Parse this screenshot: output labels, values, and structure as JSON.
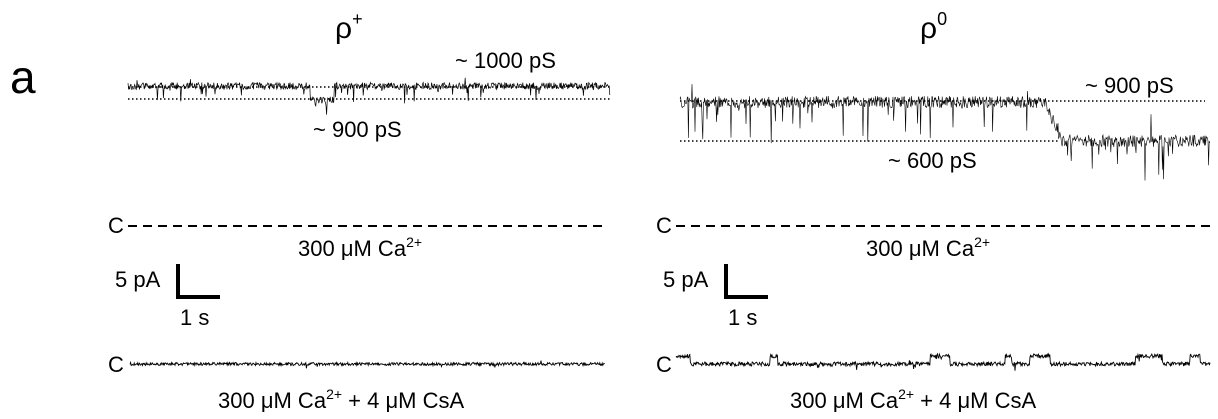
{
  "panel_label": "a",
  "left": {
    "title_base": "ρ",
    "title_sup": "+",
    "upper_conductance": "~ 1000 pS",
    "lower_conductance": "~ 900 pS",
    "closed_label": "C",
    "condition_top_pre": "300 μM Ca",
    "condition_top_sup": "2+",
    "scale_current": "5 pA",
    "scale_time": "1 s",
    "condition_bottom_pre": "300 μM Ca",
    "condition_bottom_sup": "2+",
    "condition_bottom_post": " + 4 μM CsA"
  },
  "right": {
    "title_base": "ρ",
    "title_sup": "0",
    "upper_conductance": "~ 900 pS",
    "lower_conductance": "~ 600 pS",
    "closed_label": "C",
    "condition_top_pre": "300 μM Ca",
    "condition_top_sup": "2+",
    "scale_current": "5 pA",
    "scale_time": "1 s",
    "condition_bottom_pre": "300 μM Ca",
    "condition_bottom_sup": "2+",
    "condition_bottom_post": " + 4 μM CsA"
  },
  "colors": {
    "trace": "#000000",
    "background": "#ffffff"
  }
}
